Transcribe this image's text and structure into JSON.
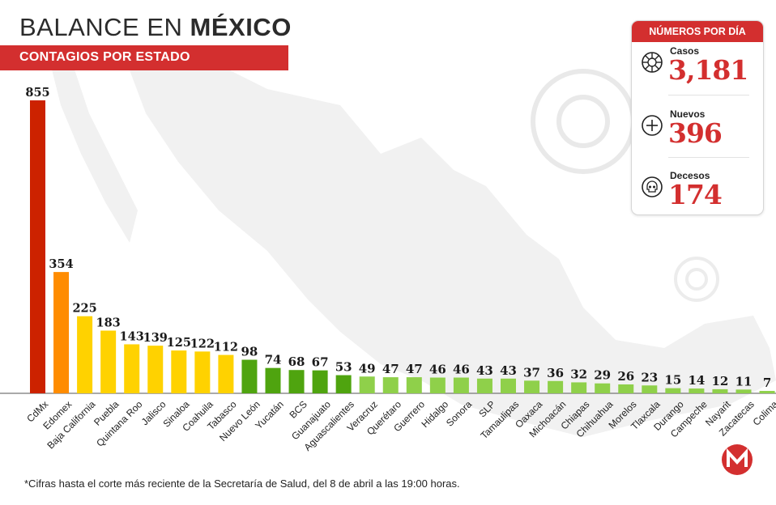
{
  "header": {
    "title_prefix": "BALANCE EN ",
    "title_bold": "MÉXICO",
    "subtitle": "CONTAGIOS POR ESTADO"
  },
  "panel": {
    "title": "NÚMEROS POR DÍA",
    "casos": {
      "label": "Casos",
      "value": "3,181",
      "icon": "virus-icon"
    },
    "nuevos": {
      "label": "Nuevos",
      "value": "396",
      "icon": "plus-icon"
    },
    "decesos": {
      "label": "Decesos",
      "value": "174",
      "icon": "skull-icon"
    }
  },
  "footnote": "*Cifras hasta el corte más reciente de la Secretaría de Salud, del 8 de abril a las 19:00 horas.",
  "colors": {
    "accent": "#d32f2f",
    "red": "#cc2200",
    "orange": "#ff8c00",
    "yellow": "#ffd200",
    "green": "#4fa40f",
    "lightgreen": "#8fd04a"
  },
  "chart_data": {
    "type": "bar",
    "categories": [
      "CdMx",
      "Edomex",
      "Baja California",
      "Puebla",
      "Quintana Roo",
      "Jalisco",
      "Sinaloa",
      "Coahuila",
      "Tabasco",
      "Nuevo León",
      "Yucatán",
      "BCS",
      "Guanajuato",
      "Aguascalientes",
      "Veracruz",
      "Querétaro",
      "Guerrero",
      "Hidalgo",
      "Sonora",
      "SLP",
      "Tamaulipas",
      "Oaxaca",
      "Michoacán",
      "Chiapas",
      "Chihuahua",
      "Morelos",
      "Tlaxcala",
      "Durango",
      "Campeche",
      "Nayarit",
      "Zacatecas",
      "Colima"
    ],
    "values": [
      855,
      354,
      225,
      183,
      143,
      139,
      125,
      122,
      112,
      98,
      74,
      68,
      67,
      53,
      49,
      47,
      47,
      46,
      46,
      43,
      43,
      37,
      36,
      32,
      29,
      26,
      23,
      15,
      14,
      12,
      11,
      7
    ],
    "bar_colors": [
      "red",
      "orange",
      "yellow",
      "yellow",
      "yellow",
      "yellow",
      "yellow",
      "yellow",
      "yellow",
      "green",
      "green",
      "green",
      "green",
      "green",
      "lightgreen",
      "lightgreen",
      "lightgreen",
      "lightgreen",
      "lightgreen",
      "lightgreen",
      "lightgreen",
      "lightgreen",
      "lightgreen",
      "lightgreen",
      "lightgreen",
      "lightgreen",
      "lightgreen",
      "lightgreen",
      "lightgreen",
      "lightgreen",
      "lightgreen",
      "lightgreen"
    ],
    "title": "CONTAGIOS POR ESTADO",
    "xlabel": "",
    "ylabel": "",
    "ylim": [
      0,
      855
    ],
    "grid": false,
    "legend": "none"
  }
}
